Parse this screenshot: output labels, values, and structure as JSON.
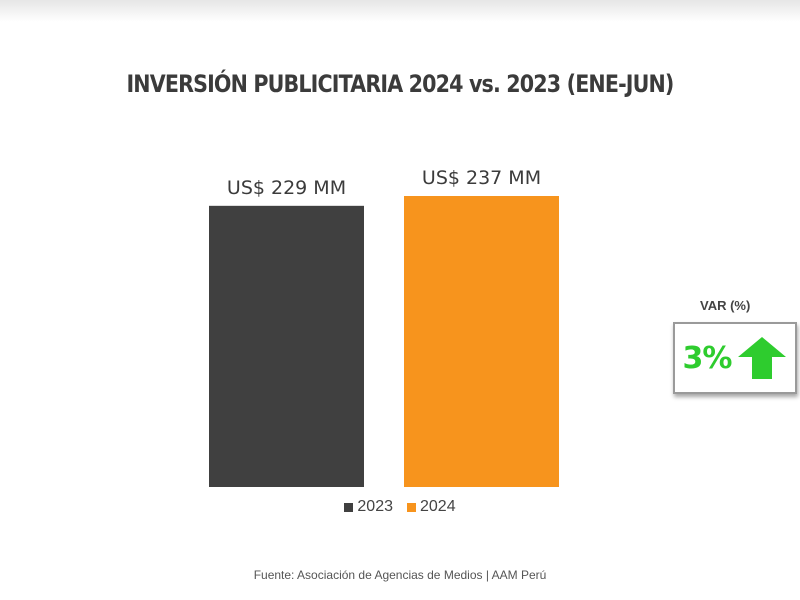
{
  "chart_data": {
    "type": "bar",
    "title": "INVERSIÓN PUBLICITARIA 2024 vs. 2023 (ENE-JUN)",
    "categories": [
      "2023",
      "2024"
    ],
    "values": [
      229,
      237
    ],
    "data_labels": [
      "US$ 229 MM",
      "US$ 237 MM"
    ],
    "colors": [
      "#404040",
      "#f7941d"
    ],
    "legend": [
      "2023",
      "2024"
    ],
    "legend_position": "bottom",
    "grid": false,
    "unit": "US$ MM",
    "ylim": [
      0,
      237
    ]
  },
  "var_box": {
    "title": "VAR (%)",
    "value": "3%",
    "color": "#2ecc2e",
    "icon": "arrow-up-icon"
  },
  "footer": "Fuente: Asociación de Agencias de Medios | AAM Perú"
}
